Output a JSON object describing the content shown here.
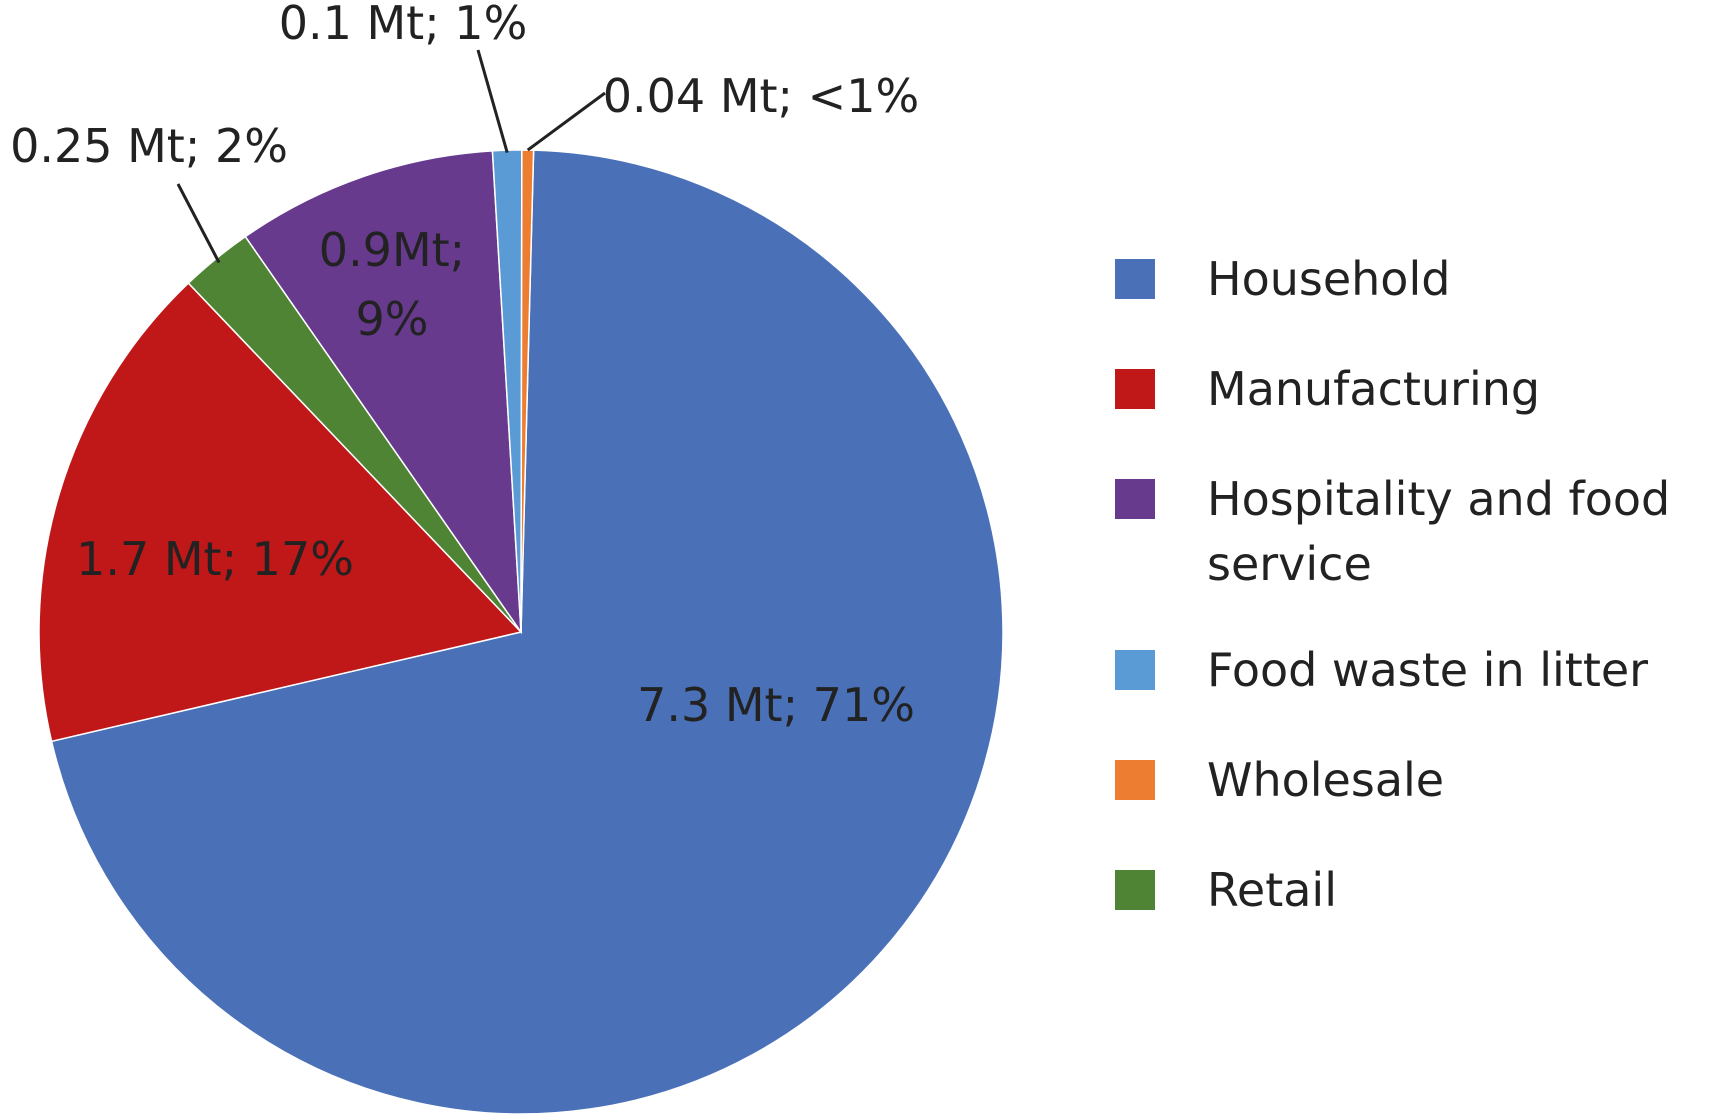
{
  "chart_data": {
    "type": "pie",
    "title": "",
    "legend_position": "right",
    "slices": [
      {
        "name": "Household",
        "value": 7.3,
        "percent": 71,
        "label": "7.3 Mt; 71%",
        "color": "#4A71B8"
      },
      {
        "name": "Manufacturing",
        "value": 1.7,
        "percent": 17,
        "label": "1.7 Mt; 17%",
        "color": "#C01719"
      },
      {
        "name": "Retail",
        "value": 0.25,
        "percent": 2,
        "label": "0.25 Mt; 2%",
        "color": "#4E8434"
      },
      {
        "name": "Hospitality and food service",
        "value": 0.9,
        "percent": 9,
        "label": "0.9Mt; 9%",
        "color": "#673A8E"
      },
      {
        "name": "Food waste in litter",
        "value": 0.1,
        "percent": 1,
        "label": "0.1 Mt; 1%",
        "color": "#5B9BD5"
      },
      {
        "name": "Wholesale",
        "value": 0.04,
        "percent": 0.4,
        "label": "0.04 Mt; <1%",
        "color": "#ED7D31"
      }
    ],
    "legend": [
      {
        "name": "Household",
        "color": "#4A71B8"
      },
      {
        "name": "Manufacturing",
        "color": "#C01719"
      },
      {
        "name": "Hospitality and food service",
        "color": "#673A8E"
      },
      {
        "name": "Food waste in litter",
        "color": "#5B9BD5"
      },
      {
        "name": "Wholesale",
        "color": "#ED7D31"
      },
      {
        "name": "Retail",
        "color": "#4E8434"
      }
    ]
  }
}
